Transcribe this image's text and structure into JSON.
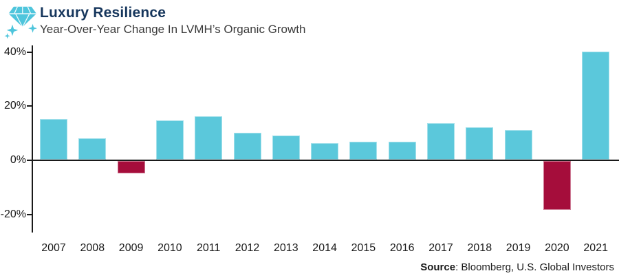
{
  "header": {
    "title": "Luxury Resilience",
    "subtitle": "Year-Over-Year Change In LVMH’s Organic Growth",
    "icon_color": "#4EC5DC"
  },
  "chart_data": {
    "type": "bar",
    "title": "Luxury Resilience",
    "subtitle": "Year-Over-Year Change In LVMH’s Organic Growth",
    "categories": [
      "2007",
      "2008",
      "2009",
      "2010",
      "2011",
      "2012",
      "2013",
      "2014",
      "2015",
      "2016",
      "2017",
      "2018",
      "2019",
      "2020",
      "2021"
    ],
    "values": [
      15,
      8,
      -4.5,
      14.5,
      16,
      10,
      9,
      6,
      6.5,
      6.5,
      13.5,
      12,
      11,
      -18,
      40
    ],
    "unit": "%",
    "xlabel": "",
    "ylabel": "",
    "ylim": [
      -25,
      42
    ],
    "yticks": [
      {
        "label": "40%",
        "value": 40
      },
      {
        "label": "20%",
        "value": 20
      },
      {
        "label": "0%",
        "value": 0
      },
      {
        "label": "-20%",
        "value": -20
      }
    ],
    "grid": false,
    "legend_position": "none",
    "colors": {
      "positive": "#5BC8DB",
      "negative": "#A50D3B",
      "axis": "#1A1A1A"
    }
  },
  "source": {
    "label": "Source",
    "text": ": Bloomberg, U.S. Global Investors"
  }
}
